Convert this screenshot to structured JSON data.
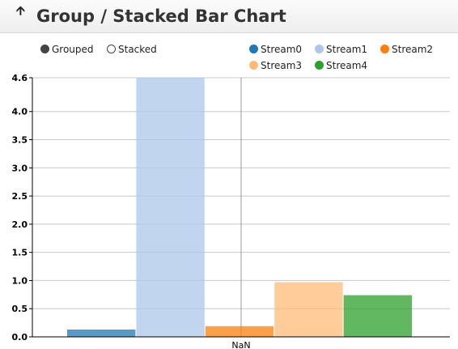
{
  "header": {
    "title": "Group / Stacked Bar Chart",
    "back_icon": "up-arrow-icon"
  },
  "controls": [
    {
      "label": "Grouped",
      "selected": true
    },
    {
      "label": "Stacked",
      "selected": false
    }
  ],
  "legend": [
    {
      "name": "Stream0",
      "color": "#1f77b4"
    },
    {
      "name": "Stream1",
      "color": "#aec7e8"
    },
    {
      "name": "Stream2",
      "color": "#ff7f0e"
    },
    {
      "name": "Stream3",
      "color": "#ffbb78"
    },
    {
      "name": "Stream4",
      "color": "#2ca02c"
    }
  ],
  "chart_data": {
    "type": "bar",
    "mode": "grouped",
    "categories": [
      "NaN"
    ],
    "series": [
      {
        "name": "Stream0",
        "values": [
          0.13
        ],
        "color": "#1f77b4"
      },
      {
        "name": "Stream1",
        "values": [
          4.6
        ],
        "color": "#aec7e8"
      },
      {
        "name": "Stream2",
        "values": [
          0.19
        ],
        "color": "#ff7f0e"
      },
      {
        "name": "Stream3",
        "values": [
          0.97
        ],
        "color": "#ffbb78"
      },
      {
        "name": "Stream4",
        "values": [
          0.74
        ],
        "color": "#2ca02c"
      }
    ],
    "ylim": [
      0,
      4.6
    ],
    "yticks": [
      "0.0",
      "0.5",
      "1.0",
      "1.5",
      "2.0",
      "2.5",
      "3.0",
      "3.5",
      "4.0",
      "4.6"
    ],
    "grid": true,
    "legend_position": "top-right"
  }
}
